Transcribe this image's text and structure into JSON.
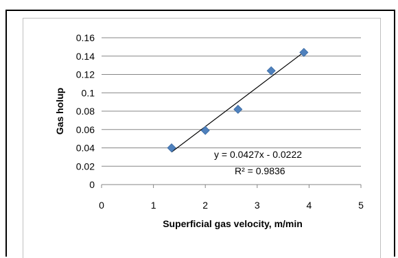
{
  "chart_data": {
    "type": "scatter",
    "title": "",
    "xlabel": "Superficial gas velocity,  m/min",
    "ylabel": "Gas holup",
    "xlim": [
      0,
      5
    ],
    "ylim": [
      0,
      0.16
    ],
    "x_ticks": [
      "0",
      "1",
      "2",
      "3",
      "4",
      "5"
    ],
    "y_ticks": [
      "0",
      "0.02",
      "0.04",
      "0.06",
      "0.08",
      "0.1",
      "0.12",
      "0.14",
      "0.16"
    ],
    "grid": "horizontal",
    "marker_color": "#4f81bd",
    "trendline_color": "#000000",
    "series": [
      {
        "x": [
          1.35,
          2.0,
          2.63,
          3.27,
          3.9
        ],
        "y": [
          0.04,
          0.059,
          0.082,
          0.124,
          0.144
        ]
      }
    ],
    "trendline": {
      "slope": 0.0427,
      "intercept": -0.0222,
      "x_range": [
        1.35,
        3.9
      ],
      "equation": "y = 0.0427x - 0.0222",
      "r_squared": "R² = 0.9836"
    }
  }
}
